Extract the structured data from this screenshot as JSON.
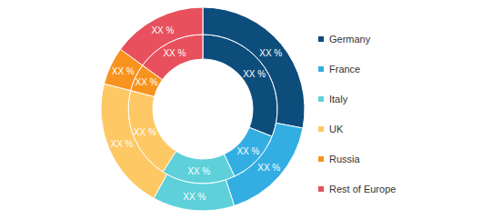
{
  "chart_data": {
    "type": "pie",
    "categories": [
      "Germany",
      "France",
      "Italy",
      "UK",
      "Russia",
      "Rest of Europe"
    ],
    "colors": [
      "#0d4d7c",
      "#33aee3",
      "#5dd0da",
      "#fec864",
      "#f7931e",
      "#e8505d"
    ],
    "data_labels": true,
    "legend": "right",
    "series": [
      {
        "values": [
          31,
          12,
          16,
          20,
          6,
          15
        ],
        "value_labels": [
          "XX %",
          "XX %",
          "XX %",
          "XX %",
          "XX %",
          "XX %"
        ]
      },
      {
        "values": [
          28,
          17,
          13,
          21,
          6,
          15
        ],
        "value_labels": [
          "XX %",
          "XX %",
          "XX %",
          "XX %",
          "XX %",
          "XX %"
        ]
      }
    ]
  }
}
